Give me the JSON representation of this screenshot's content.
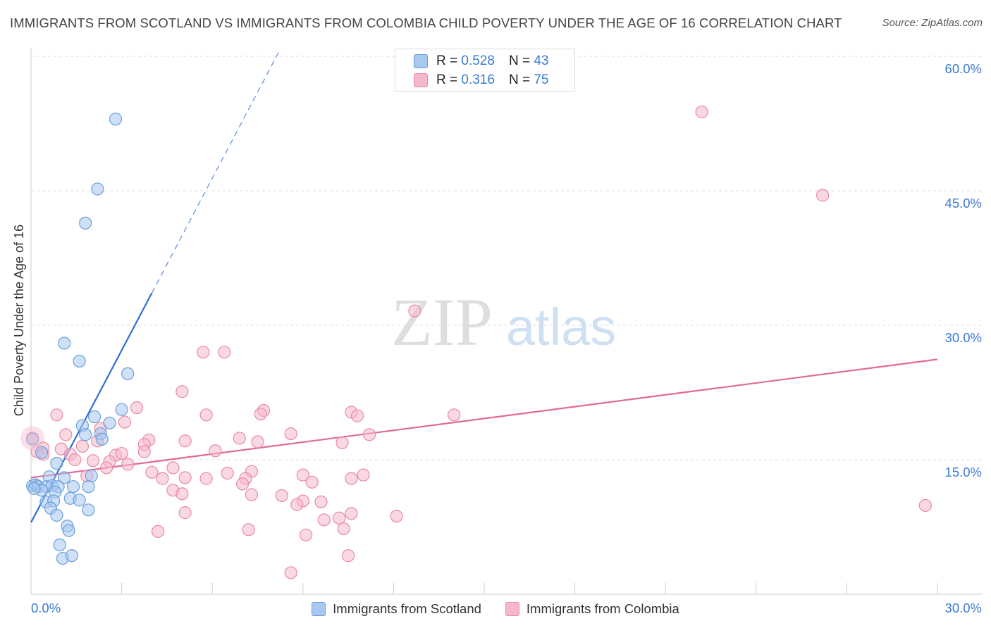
{
  "title": "IMMIGRANTS FROM SCOTLAND VS IMMIGRANTS FROM COLOMBIA CHILD POVERTY UNDER THE AGE OF 16 CORRELATION CHART",
  "source": "Source: ZipAtlas.com",
  "watermark": {
    "zip": "ZIP",
    "atlas": "atlas"
  },
  "colors": {
    "scotland_fill": "#a8c8f0",
    "scotland_edge": "#6a9fdc",
    "scotland_line": "#2f6fd0",
    "colombia_fill": "#f5b8cb",
    "colombia_edge": "#e88aa8",
    "colombia_line": "#e06a95",
    "axis_label": "#3a7bd5"
  },
  "legend_inset": {
    "rows": [
      {
        "r_label": "R =",
        "r_value": "0.528",
        "n_label": "N =",
        "n_value": "43"
      },
      {
        "r_label": "R =",
        "r_value": "0.316",
        "n_label": "N =",
        "n_value": "75"
      }
    ]
  },
  "legend_bottom": [
    "Immigrants from Scotland",
    "Immigrants from Colombia"
  ],
  "chart_data": {
    "type": "scatter",
    "title": "IMMIGRANTS FROM SCOTLAND VS IMMIGRANTS FROM COLOMBIA CHILD POVERTY UNDER THE AGE OF 16 CORRELATION CHART",
    "xlabel": "",
    "ylabel": "Child Poverty Under the Age of 16",
    "xlim": [
      0,
      30
    ],
    "ylim": [
      0,
      60
    ],
    "x_tick_labels": [
      "0.0%",
      "30.0%"
    ],
    "y_ticks": [
      15,
      30,
      45,
      60
    ],
    "y_tick_labels": [
      "15.0%",
      "30.0%",
      "45.0%",
      "60.0%"
    ],
    "grid": true,
    "series": [
      {
        "name": "Immigrants from Scotland",
        "r": 0.528,
        "n": 43,
        "trend": {
          "x0": 0.0,
          "y0": 8.0,
          "x1": 4.0,
          "y1": 33.6,
          "dash_to_x": 8.2
        },
        "points": [
          [
            2.8,
            53.0
          ],
          [
            2.2,
            45.2
          ],
          [
            1.8,
            41.4
          ],
          [
            1.1,
            28.0
          ],
          [
            1.6,
            26.0
          ],
          [
            3.2,
            24.6
          ],
          [
            3.0,
            20.6
          ],
          [
            2.1,
            19.8
          ],
          [
            2.6,
            19.1
          ],
          [
            1.7,
            18.8
          ],
          [
            2.3,
            17.9
          ],
          [
            1.8,
            17.8
          ],
          [
            2.35,
            17.3
          ],
          [
            0.35,
            15.8
          ],
          [
            0.85,
            14.6
          ],
          [
            0.6,
            13.1
          ],
          [
            1.1,
            13.0
          ],
          [
            2.0,
            13.2
          ],
          [
            0.2,
            12.1
          ],
          [
            0.05,
            12.1
          ],
          [
            0.15,
            12.2
          ],
          [
            0.25,
            12.0
          ],
          [
            0.5,
            12.0
          ],
          [
            0.7,
            12.1
          ],
          [
            0.9,
            12.0
          ],
          [
            1.4,
            12.0
          ],
          [
            1.9,
            12.0
          ],
          [
            0.35,
            11.6
          ],
          [
            0.8,
            11.4
          ],
          [
            0.1,
            11.8
          ],
          [
            1.3,
            10.7
          ],
          [
            1.6,
            10.5
          ],
          [
            0.5,
            10.3
          ],
          [
            0.75,
            10.4
          ],
          [
            0.65,
            9.6
          ],
          [
            1.9,
            9.4
          ],
          [
            0.85,
            8.8
          ],
          [
            1.2,
            7.6
          ],
          [
            1.25,
            7.1
          ],
          [
            0.95,
            5.5
          ],
          [
            1.05,
            4.0
          ],
          [
            1.35,
            4.3
          ],
          [
            0.05,
            17.3
          ]
        ]
      },
      {
        "name": "Immigrants from Colombia",
        "r": 0.316,
        "n": 75,
        "trend": {
          "x0": 0.0,
          "y0": 13.0,
          "x1": 30.0,
          "y1": 26.2
        },
        "points": [
          [
            22.2,
            53.8
          ],
          [
            26.2,
            44.5
          ],
          [
            12.7,
            31.6
          ],
          [
            5.7,
            27.0
          ],
          [
            6.4,
            27.0
          ],
          [
            5.0,
            22.6
          ],
          [
            3.5,
            20.8
          ],
          [
            7.7,
            20.5
          ],
          [
            10.6,
            20.3
          ],
          [
            0.85,
            20.0
          ],
          [
            5.8,
            20.0
          ],
          [
            7.6,
            20.1
          ],
          [
            10.8,
            19.9
          ],
          [
            14.0,
            20.0
          ],
          [
            3.1,
            19.2
          ],
          [
            2.3,
            18.5
          ],
          [
            1.15,
            17.8
          ],
          [
            8.6,
            17.9
          ],
          [
            11.2,
            17.8
          ],
          [
            6.9,
            17.4
          ],
          [
            3.9,
            17.2
          ],
          [
            5.1,
            17.1
          ],
          [
            7.5,
            17.0
          ],
          [
            10.3,
            16.9
          ],
          [
            2.2,
            17.1
          ],
          [
            0.4,
            16.3
          ],
          [
            1.0,
            16.2
          ],
          [
            1.7,
            16.5
          ],
          [
            3.75,
            16.7
          ],
          [
            6.1,
            16.0
          ],
          [
            0.2,
            15.9
          ],
          [
            0.4,
            15.6
          ],
          [
            1.3,
            15.6
          ],
          [
            2.8,
            15.5
          ],
          [
            3.0,
            15.7
          ],
          [
            3.75,
            15.9
          ],
          [
            1.45,
            15.0
          ],
          [
            2.05,
            14.9
          ],
          [
            2.6,
            14.8
          ],
          [
            3.2,
            14.5
          ],
          [
            2.5,
            14.1
          ],
          [
            4.7,
            14.1
          ],
          [
            4.0,
            13.6
          ],
          [
            5.1,
            13.0
          ],
          [
            6.5,
            13.5
          ],
          [
            7.3,
            13.7
          ],
          [
            9.0,
            13.3
          ],
          [
            11.0,
            13.3
          ],
          [
            4.35,
            12.9
          ],
          [
            5.8,
            12.9
          ],
          [
            7.1,
            12.9
          ],
          [
            1.85,
            13.2
          ],
          [
            7.0,
            12.3
          ],
          [
            9.3,
            12.5
          ],
          [
            10.6,
            12.9
          ],
          [
            4.7,
            11.6
          ],
          [
            7.3,
            11.1
          ],
          [
            5.0,
            11.2
          ],
          [
            8.3,
            11.0
          ],
          [
            9.6,
            10.3
          ],
          [
            9.0,
            10.4
          ],
          [
            8.8,
            10.0
          ],
          [
            5.1,
            9.1
          ],
          [
            10.6,
            9.0
          ],
          [
            12.1,
            8.7
          ],
          [
            9.7,
            8.3
          ],
          [
            10.2,
            8.5
          ],
          [
            4.2,
            7.0
          ],
          [
            7.2,
            7.2
          ],
          [
            9.1,
            6.6
          ],
          [
            10.35,
            7.3
          ],
          [
            10.5,
            4.3
          ],
          [
            8.6,
            2.4
          ],
          [
            29.6,
            9.9
          ],
          [
            0.05,
            17.4
          ]
        ]
      }
    ]
  }
}
